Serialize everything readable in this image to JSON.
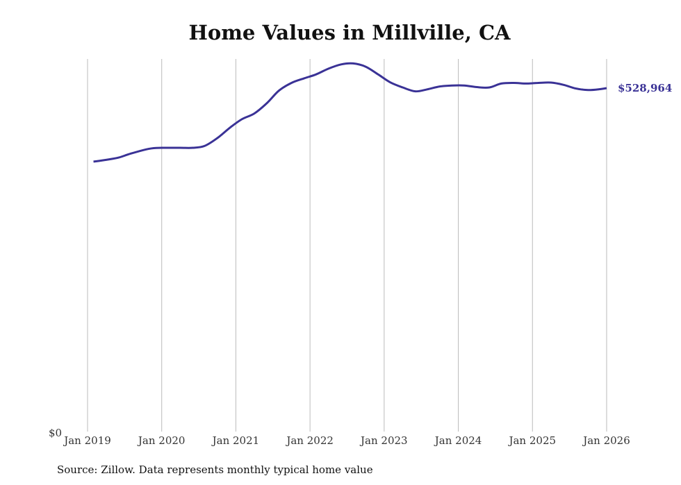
{
  "chart_data": {
    "type": "line",
    "title": "Home Values in Millville, CA",
    "xlabel": "",
    "ylabel": "",
    "source": "Source: Zillow. Data represents monthly typical home value",
    "x_ticks": [
      "Jan 2019",
      "Jan 2020",
      "Jan 2021",
      "Jan 2022",
      "Jan 2023",
      "Jan 2024",
      "Jan 2025",
      "Jan 2026"
    ],
    "y_ticks": [
      "$0"
    ],
    "ylim": [
      0,
      570000
    ],
    "xlim": [
      2019,
      2026
    ],
    "grid": "vertical",
    "line_color": "#3a3296",
    "end_label": "$528,964",
    "series": [
      {
        "name": "Typical home value",
        "x": [
          2019.08,
          2019.25,
          2019.42,
          2019.58,
          2019.83,
          2020.0,
          2020.25,
          2020.42,
          2020.58,
          2020.75,
          2020.92,
          2021.08,
          2021.25,
          2021.42,
          2021.58,
          2021.75,
          2021.92,
          2022.08,
          2022.25,
          2022.42,
          2022.58,
          2022.75,
          2022.92,
          2023.08,
          2023.25,
          2023.42,
          2023.58,
          2023.75,
          2023.92,
          2024.08,
          2024.25,
          2024.42,
          2024.58,
          2024.75,
          2024.92,
          2025.08,
          2025.25,
          2025.42,
          2025.58,
          2025.75,
          2025.92,
          2026.0
        ],
        "values": [
          415700,
          418500,
          422000,
          428000,
          435500,
          437000,
          437000,
          437000,
          440000,
          452000,
          468000,
          481000,
          490000,
          506000,
          525000,
          537000,
          544000,
          550000,
          559000,
          565500,
          567000,
          562000,
          550000,
          538000,
          530000,
          524000,
          527000,
          531500,
          533000,
          533000,
          530500,
          530000,
          536000,
          537000,
          536000,
          537000,
          537500,
          534000,
          528500,
          526000,
          527500,
          528964
        ]
      }
    ]
  }
}
